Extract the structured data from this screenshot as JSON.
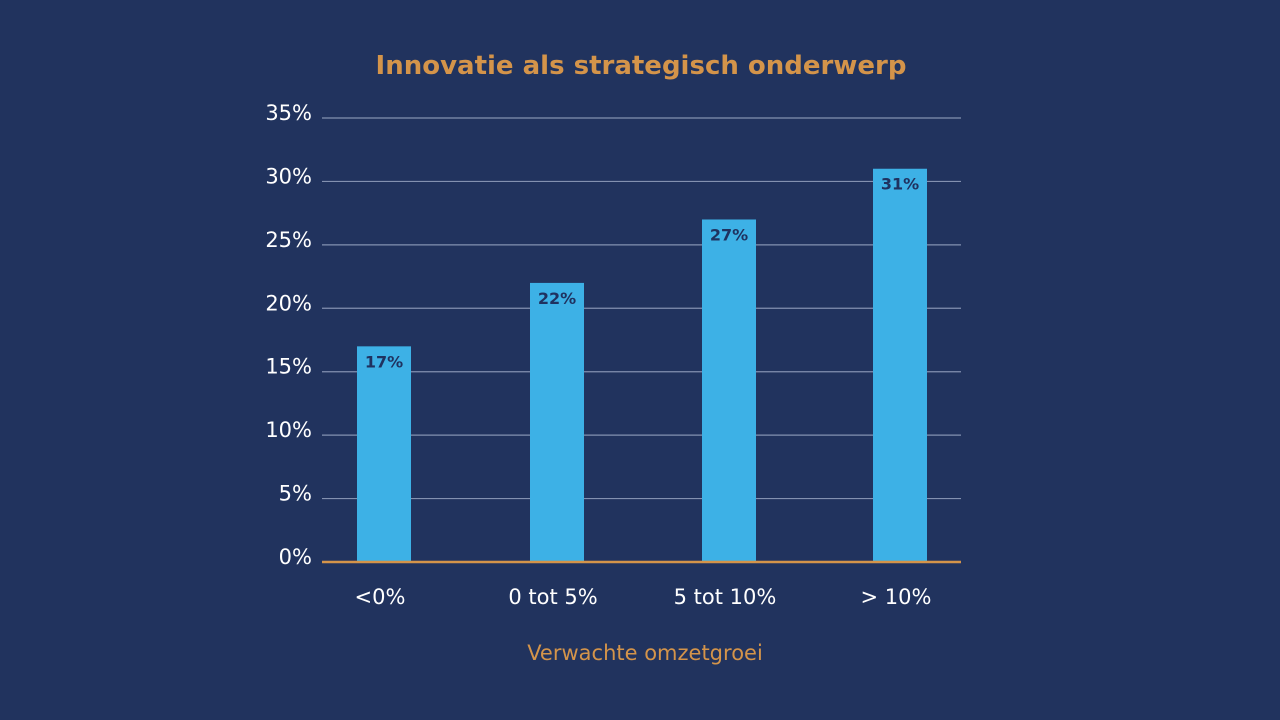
{
  "chart_data": {
    "type": "bar",
    "title": "Innovatie als strategisch onderwerp",
    "xlabel": "Verwachte omzetgroei",
    "ylabel": "",
    "categories": [
      "<0%",
      "0 tot 5%",
      "5 tot 10%",
      "> 10%"
    ],
    "values": [
      17,
      22,
      27,
      31
    ],
    "data_labels": [
      "17%",
      "22%",
      "27%",
      "31%"
    ],
    "ylim": [
      0,
      35
    ],
    "yticks": [
      0,
      5,
      10,
      15,
      20,
      25,
      30,
      35
    ],
    "ytick_labels": [
      "0%",
      "5%",
      "10%",
      "15%",
      "20%",
      "25%",
      "30%",
      "35%"
    ],
    "grid": true,
    "legend": "none",
    "colors": {
      "bar": "#3db1e6",
      "accent": "#d4944a",
      "background": "#21335e",
      "grid": "#8391b0",
      "text": "#ffffff",
      "bar_label": "#1f3260"
    }
  }
}
